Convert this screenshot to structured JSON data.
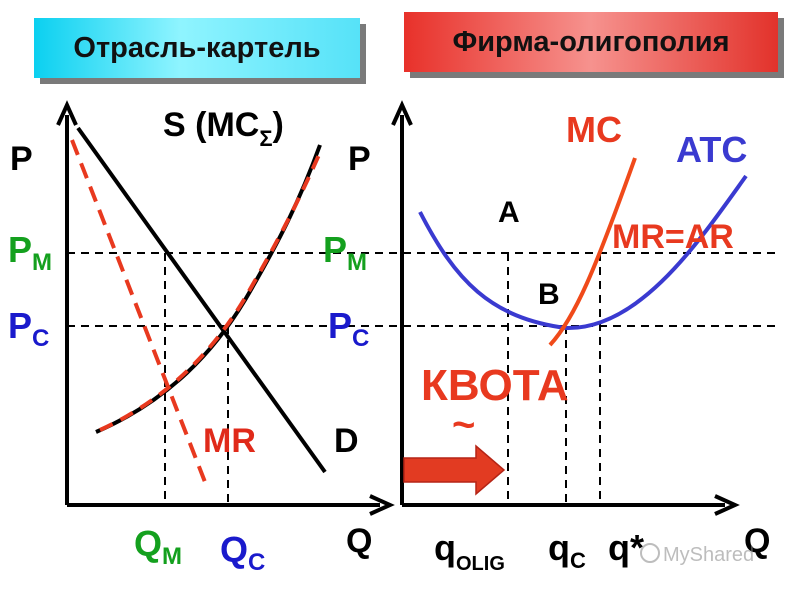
{
  "titles": {
    "left": "Отрасль-картель",
    "right": "Фирма-олигополия"
  },
  "left_panel": {
    "supply_label": "S (MC",
    "supply_sub": "Σ",
    "supply_close": ")",
    "axis_p": "P",
    "axis_q": "Q",
    "pm_main": "P",
    "pm_sub": "M",
    "pc_main": "P",
    "pc_sub": "C",
    "qm_main": "Q",
    "qm_sub": "M",
    "qc_main": "Q",
    "qc_sub": "C",
    "mr": "MR",
    "d": "D"
  },
  "right_panel": {
    "axis_p": "P",
    "axis_q": "Q",
    "pm_main": "P",
    "pm_sub": "M",
    "pc_main": "P",
    "pc_sub": "C",
    "mc": "MC",
    "atc": "ATC",
    "mr_ar": "MR=AR",
    "point_a": "A",
    "point_b": "B",
    "quota": "КВОТА",
    "quota_mark": "~",
    "q_olig_main": "q",
    "q_olig_sub": "OLIG",
    "qc_main": "q",
    "qc_sub": "C",
    "q_star": "q*"
  },
  "watermark": "MyShared",
  "colors": {
    "blue_label": "#1a1acc",
    "green_label": "#14a01e",
    "red_label": "#e02a1a",
    "demand": "#000000",
    "mr_dashed": "#e8391f",
    "atc": "#3a3ad0",
    "mc": "#f04a1a",
    "arrow": "#e23b22"
  }
}
